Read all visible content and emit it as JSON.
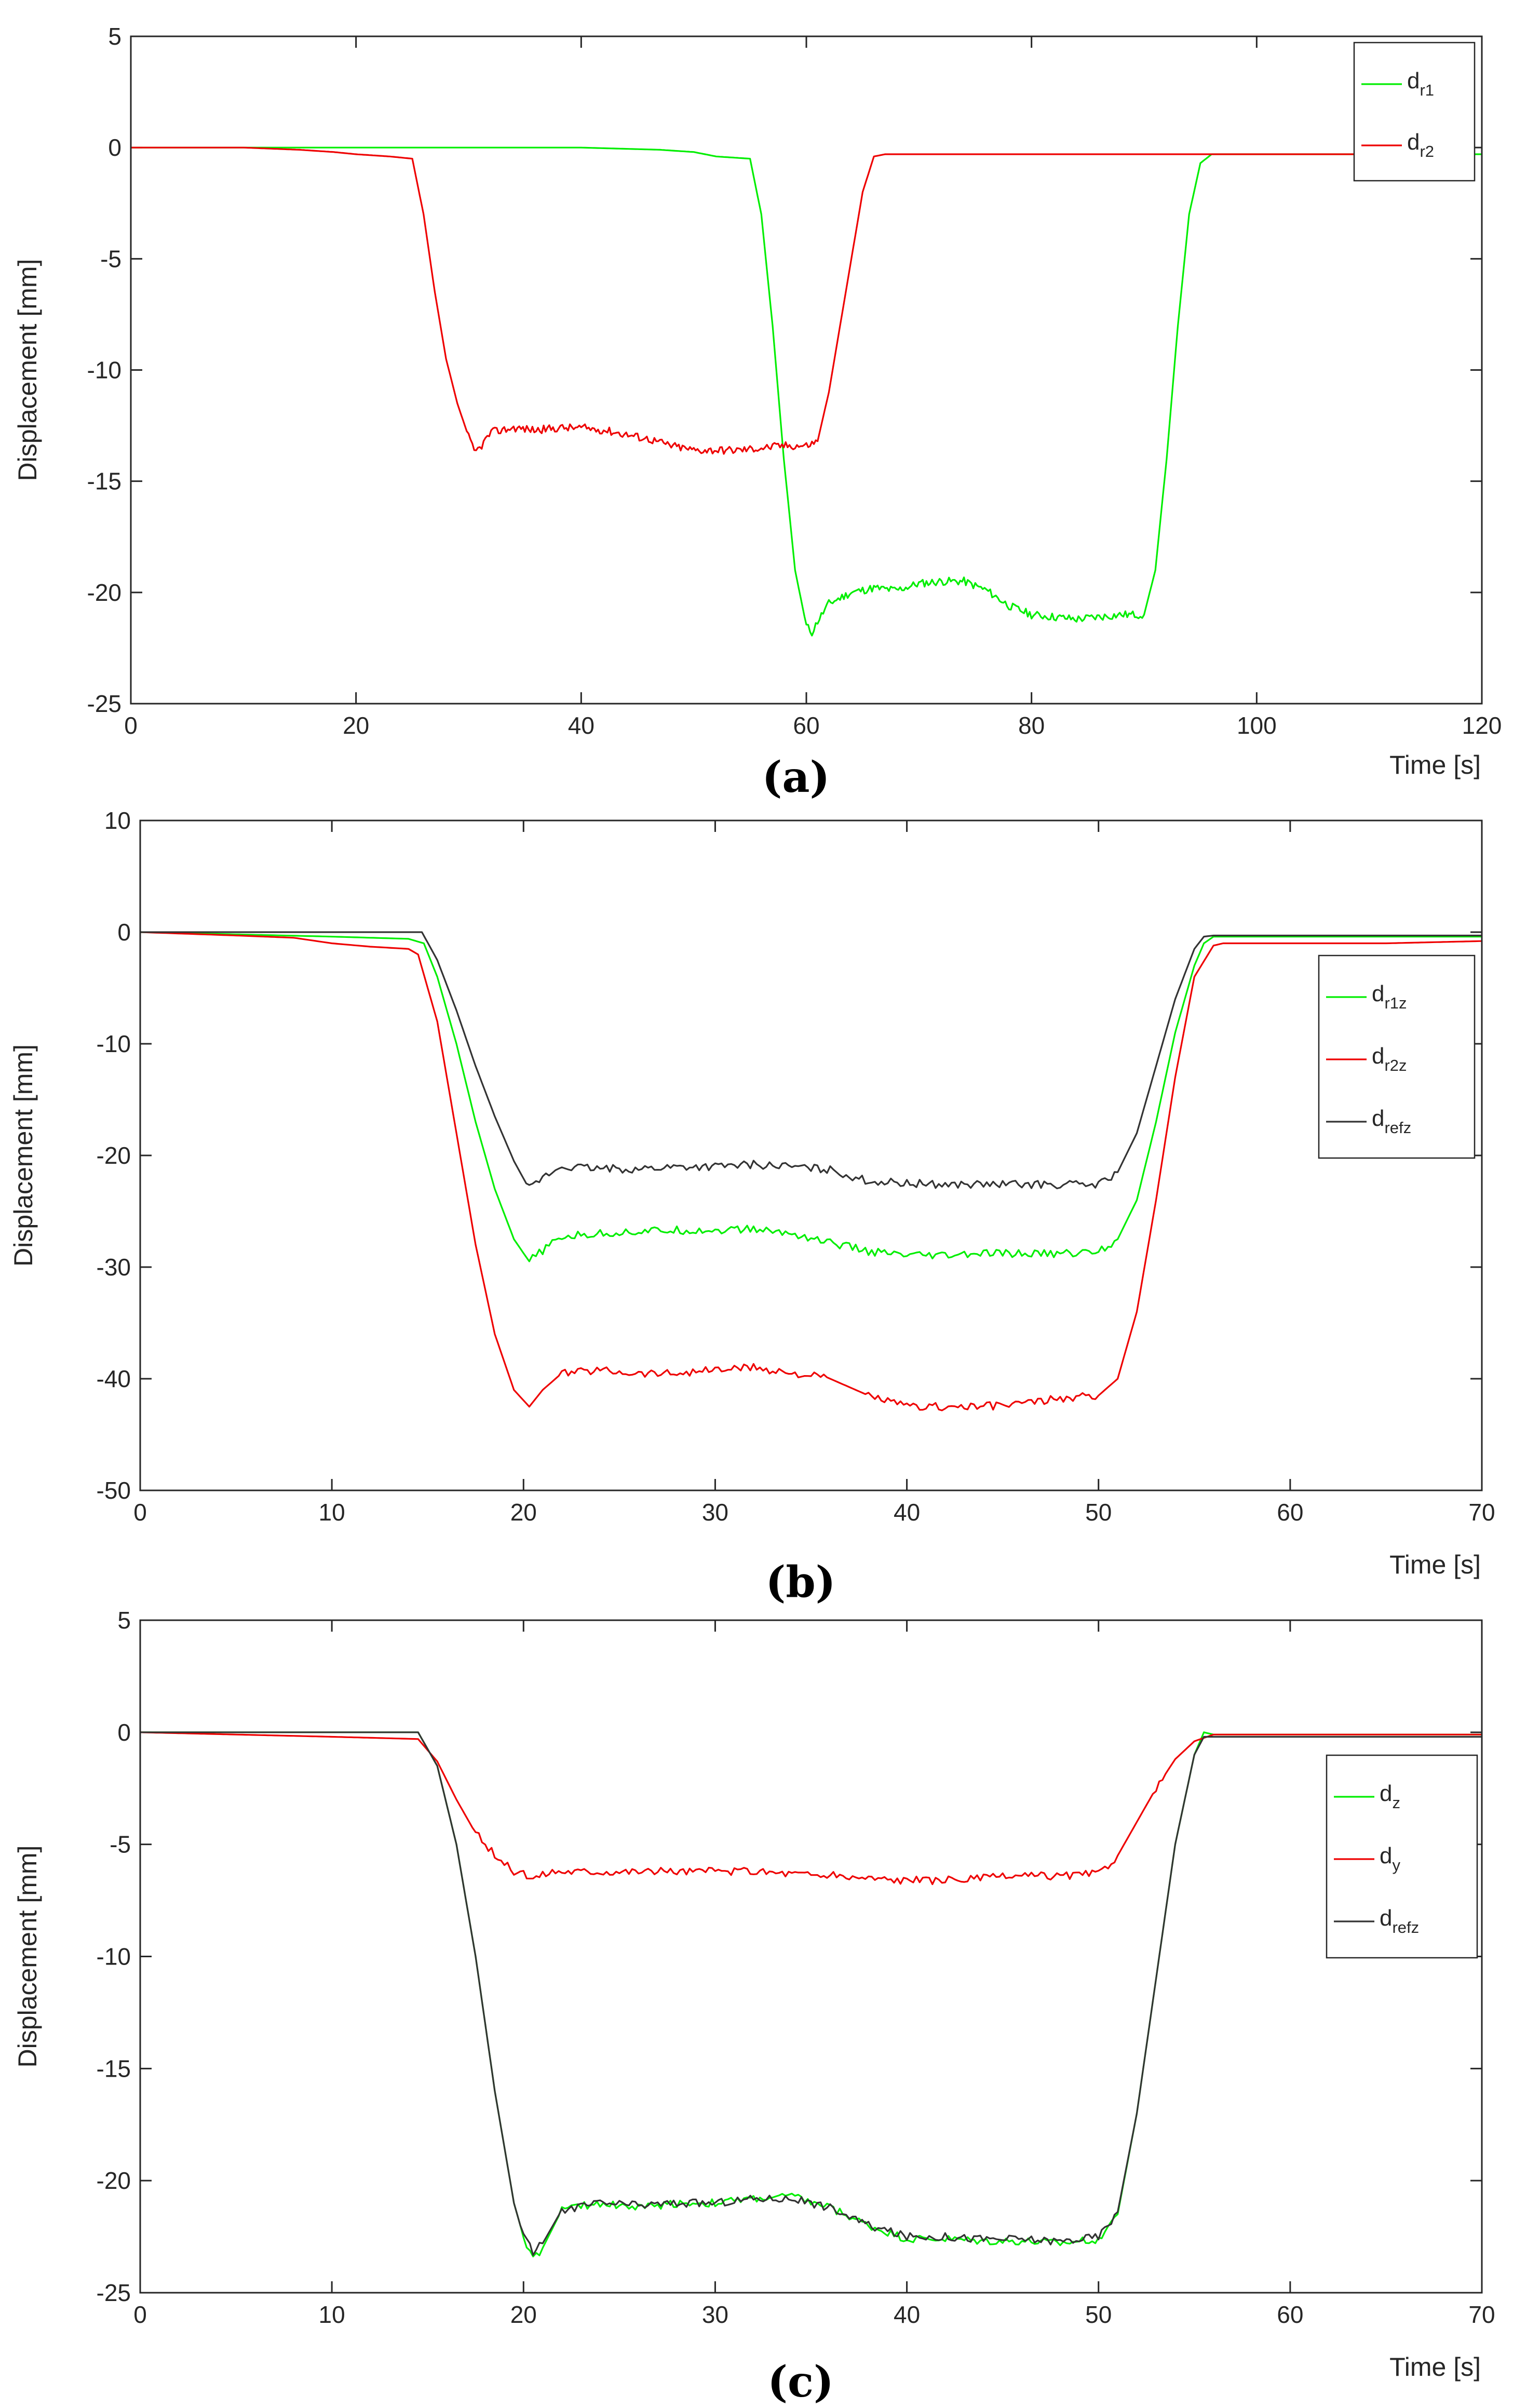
{
  "chart_data": [
    {
      "type": "line",
      "panel_label": "(a)",
      "xlabel": "Time [s]",
      "ylabel": "Displacement [mm]",
      "xlim": [
        0,
        120
      ],
      "ylim": [
        -25,
        5
      ],
      "xticks": [
        0,
        20,
        40,
        60,
        80,
        100,
        120
      ],
      "yticks": [
        5,
        0,
        -5,
        -10,
        -15,
        -20,
        -25
      ],
      "legend_position": "top-right",
      "series": [
        {
          "name": "d_r1",
          "label_main": "d",
          "label_sub": "r1",
          "color": "#00ee00",
          "x": [
            0,
            10,
            20,
            30,
            40,
            47,
            50,
            52,
            55,
            56,
            57,
            58,
            59,
            60,
            60.5,
            61,
            62,
            64,
            66,
            68,
            70,
            72,
            74,
            76,
            78,
            80,
            82,
            84,
            86,
            88,
            90,
            91,
            92,
            93,
            94,
            95,
            96,
            100,
            110,
            120
          ],
          "y": [
            0,
            0,
            0,
            0,
            0,
            -0.1,
            -0.2,
            -0.4,
            -0.5,
            -3,
            -8,
            -14,
            -19,
            -21.5,
            -21.8,
            -21.3,
            -20.5,
            -20,
            -19.8,
            -19.9,
            -19.6,
            -19.5,
            -19.5,
            -19.9,
            -20.6,
            -21,
            -21.1,
            -21.2,
            -21.1,
            -21,
            -21,
            -19,
            -14,
            -8,
            -3,
            -0.7,
            -0.3,
            -0.3,
            -0.3,
            -0.3
          ]
        },
        {
          "name": "d_r2",
          "label_main": "d",
          "label_sub": "r2",
          "color": "#ee0000",
          "x": [
            0,
            10,
            15,
            18,
            20,
            23,
            25,
            26,
            27,
            28,
            29,
            30,
            30.5,
            31,
            32,
            34,
            36,
            38,
            40,
            42,
            44,
            46,
            48,
            50,
            52,
            54,
            56,
            58,
            60,
            61,
            62,
            63,
            64,
            65,
            66,
            67,
            70,
            80,
            90,
            100,
            109
          ],
          "y": [
            0,
            0,
            -0.1,
            -0.2,
            -0.3,
            -0.4,
            -0.5,
            -3,
            -6.5,
            -9.5,
            -11.5,
            -13,
            -13.7,
            -13.5,
            -12.8,
            -12.6,
            -12.7,
            -12.6,
            -12.6,
            -12.7,
            -12.9,
            -13.1,
            -13.4,
            -13.6,
            -13.6,
            -13.6,
            -13.5,
            -13.4,
            -13.4,
            -13.2,
            -11,
            -8,
            -5,
            -2,
            -0.4,
            -0.3,
            -0.3,
            -0.3,
            -0.3,
            -0.3,
            -0.3
          ]
        }
      ]
    },
    {
      "type": "line",
      "panel_label": "(b)",
      "xlabel": "Time [s]",
      "ylabel": "Displacement [mm]",
      "xlim": [
        0,
        70
      ],
      "ylim": [
        -50,
        10
      ],
      "xticks": [
        0,
        10,
        20,
        30,
        40,
        50,
        60,
        70
      ],
      "yticks": [
        10,
        0,
        -10,
        -20,
        -30,
        -40,
        -50
      ],
      "legend_position": "right",
      "series": [
        {
          "name": "d_r1z",
          "label_main": "d",
          "label_sub": "r1z",
          "color": "#00ee00",
          "x": [
            0,
            5,
            10,
            14,
            14.8,
            15.5,
            16.5,
            17.5,
            18.5,
            19.5,
            20.3,
            21,
            22,
            24,
            26,
            28,
            30,
            32,
            34,
            36,
            38,
            40,
            42,
            44,
            46,
            48,
            50,
            51,
            52,
            53,
            54,
            55,
            55.5,
            56,
            60,
            65,
            70
          ],
          "y": [
            0,
            -0.2,
            -0.4,
            -0.6,
            -1,
            -4,
            -10,
            -17,
            -23,
            -27.5,
            -29.5,
            -28.5,
            -27.3,
            -27,
            -26.8,
            -26.7,
            -26.7,
            -26.6,
            -27,
            -27.8,
            -28.6,
            -29,
            -29,
            -28.8,
            -28.8,
            -28.8,
            -28.6,
            -27.5,
            -24,
            -17,
            -9,
            -3,
            -1,
            -0.4,
            -0.4,
            -0.4,
            -0.4
          ]
        },
        {
          "name": "d_r2z",
          "label_main": "d",
          "label_sub": "r2z",
          "color": "#ee0000",
          "x": [
            0,
            5,
            8,
            10,
            12,
            14,
            14.5,
            15.5,
            16.5,
            17.5,
            18.5,
            19.5,
            20.3,
            21,
            22,
            24,
            26,
            28,
            30,
            32,
            34,
            36,
            38,
            40,
            42,
            44,
            46,
            48,
            50,
            51,
            52,
            53,
            54,
            55,
            56,
            56.5,
            60,
            65,
            70
          ],
          "y": [
            0,
            -0.3,
            -0.5,
            -1,
            -1.3,
            -1.5,
            -2,
            -8,
            -18,
            -28,
            -36,
            -41,
            -42.5,
            -41,
            -39.5,
            -39.2,
            -39.5,
            -39.5,
            -39.2,
            -39,
            -39.5,
            -40,
            -41.5,
            -42.5,
            -42.5,
            -42.5,
            -42.2,
            -41.8,
            -41.5,
            -40,
            -34,
            -24,
            -13,
            -4,
            -1.2,
            -1,
            -1,
            -1,
            -0.8
          ]
        },
        {
          "name": "d_refz",
          "label_main": "d",
          "label_sub": "refz",
          "color": "#333333",
          "x": [
            0,
            5,
            10,
            14.7,
            15.5,
            16.5,
            17.5,
            18.5,
            19.5,
            20.3,
            21,
            22,
            24,
            26,
            28,
            30,
            32,
            34,
            36,
            38,
            40,
            42,
            44,
            46,
            48,
            50,
            51,
            52,
            53,
            54,
            55,
            55.5,
            56,
            60,
            65,
            70
          ],
          "y": [
            0,
            0,
            0,
            0,
            -2.5,
            -7,
            -12,
            -16.5,
            -20.5,
            -23,
            -22,
            -21,
            -21.2,
            -21.2,
            -21,
            -21,
            -20.8,
            -21,
            -21.3,
            -22.3,
            -22.5,
            -22.6,
            -22.6,
            -22.6,
            -22.6,
            -22.6,
            -21.5,
            -18,
            -12,
            -6,
            -1.5,
            -0.4,
            -0.3,
            -0.3,
            -0.3,
            -0.3
          ]
        }
      ]
    },
    {
      "type": "line",
      "panel_label": "(c)",
      "xlabel": "Time [s]",
      "ylabel": "Displacement [mm]",
      "xlim": [
        0,
        70
      ],
      "ylim": [
        -25,
        5
      ],
      "xticks": [
        0,
        10,
        20,
        30,
        40,
        50,
        60,
        70
      ],
      "yticks": [
        5,
        0,
        -5,
        -10,
        -15,
        -20,
        -25
      ],
      "legend_position": "right",
      "series": [
        {
          "name": "d_z",
          "label_main": "d",
          "label_sub": "z",
          "color": "#00ee00",
          "x": [
            0,
            5,
            10,
            14.5,
            15.5,
            16.5,
            17.5,
            18.5,
            19.5,
            20,
            20.5,
            21,
            22,
            24,
            26,
            28,
            30,
            32,
            34,
            36,
            38,
            40,
            42,
            44,
            46,
            48,
            50,
            51,
            52,
            53,
            54,
            55,
            55.5,
            56,
            60,
            65,
            70
          ],
          "y": [
            0,
            0,
            0,
            0,
            -1.5,
            -5,
            -10,
            -16,
            -21,
            -22.5,
            -23.5,
            -23,
            -21.3,
            -21,
            -21.2,
            -21,
            -21,
            -20.8,
            -20.7,
            -21.2,
            -22,
            -22.6,
            -22.6,
            -22.7,
            -22.7,
            -22.8,
            -22.6,
            -21.5,
            -17,
            -11,
            -5,
            -1,
            0,
            -0.1,
            -0.1,
            -0.1,
            -0.1
          ]
        },
        {
          "name": "d_y",
          "label_main": "d",
          "label_sub": "y",
          "color": "#ee0000",
          "x": [
            0,
            5,
            10,
            14.5,
            15.5,
            16.5,
            17.5,
            18.5,
            19.5,
            20.5,
            21.5,
            23,
            25,
            28,
            30,
            32,
            34,
            36,
            38,
            40,
            42,
            44,
            46,
            48,
            50,
            51,
            52,
            53,
            54,
            55,
            56,
            60,
            65,
            70
          ],
          "y": [
            0,
            -0.1,
            -0.2,
            -0.3,
            -1.3,
            -3,
            -4.5,
            -5.5,
            -6.2,
            -6.5,
            -6.2,
            -6.2,
            -6.2,
            -6.2,
            -6.2,
            -6.2,
            -6.3,
            -6.4,
            -6.5,
            -6.6,
            -6.6,
            -6.5,
            -6.4,
            -6.4,
            -6.3,
            -5.5,
            -4,
            -2.5,
            -1.2,
            -0.4,
            -0.1,
            -0.1,
            -0.1,
            -0.1
          ]
        },
        {
          "name": "d_refz",
          "label_main": "d",
          "label_sub": "refz",
          "color": "#333333",
          "x": [
            0,
            5,
            10,
            14.5,
            15.5,
            16.5,
            17.5,
            18.5,
            19.5,
            20,
            20.5,
            21,
            22,
            24,
            26,
            28,
            30,
            32,
            34,
            36,
            38,
            40,
            42,
            44,
            46,
            48,
            50,
            51,
            52,
            53,
            54,
            55,
            55.5,
            56,
            60,
            65,
            70
          ],
          "y": [
            0,
            0,
            0,
            0,
            -1.5,
            -5,
            -10,
            -16,
            -21,
            -22.5,
            -23.2,
            -22.8,
            -21.3,
            -21,
            -21.1,
            -21,
            -21,
            -20.8,
            -20.8,
            -21.2,
            -22,
            -22.5,
            -22.5,
            -22.6,
            -22.6,
            -22.7,
            -22.5,
            -21.4,
            -17,
            -11,
            -5,
            -1,
            -0.2,
            -0.2,
            -0.2,
            -0.2,
            -0.2
          ]
        }
      ]
    }
  ]
}
